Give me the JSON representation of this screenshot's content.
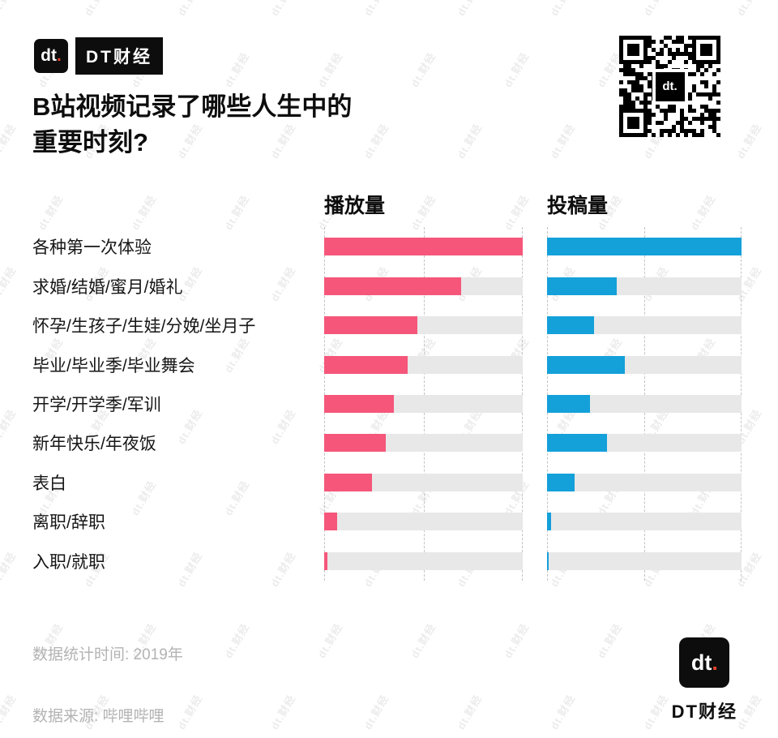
{
  "watermark": {
    "text": "dt.财经"
  },
  "header": {
    "logo": {
      "icon_text": "dt",
      "icon_dot": ".",
      "dot_color": "#E8402D",
      "label": "DT财经"
    },
    "title_line1": "B站视频记录了哪些人生中的",
    "title_line2": "重要时刻?"
  },
  "qr": {
    "center_text": "dt."
  },
  "chart_data": {
    "type": "bar",
    "orientation": "horizontal",
    "unit": "percent of max (no numeric axis labels shown)",
    "categories": [
      "各种第一次体验",
      "求婚/结婚/蜜月/婚礼",
      "怀孕/生孩子/生娃/分娩/坐月子",
      "毕业/毕业季/毕业舞会",
      "开学/开学季/军训",
      "新年快乐/年夜饭",
      "表白",
      "离职/辞职",
      "入职/就职"
    ],
    "series": [
      {
        "name": "播放量",
        "color": "#F5567A",
        "values": [
          100,
          69,
          47,
          42,
          35,
          31,
          24,
          6.5,
          1.5
        ]
      },
      {
        "name": "投稿量",
        "color": "#14A0D9",
        "values": [
          100,
          36,
          24,
          40,
          22,
          31,
          14,
          2,
          1
        ]
      }
    ],
    "xlim": [
      0,
      100
    ],
    "track_color": "#E8E8E8",
    "gridlines": "vertical dashed lines at 0%, 50%, 100% of each panel",
    "legend_position": "column headers above each bar panel"
  },
  "footer": {
    "stat_time": "数据统计时间: 2019年",
    "source": "数据来源: 哔哩哔哩",
    "logo": {
      "icon_text": "dt",
      "icon_dot": ".",
      "label": "DT财经"
    }
  }
}
